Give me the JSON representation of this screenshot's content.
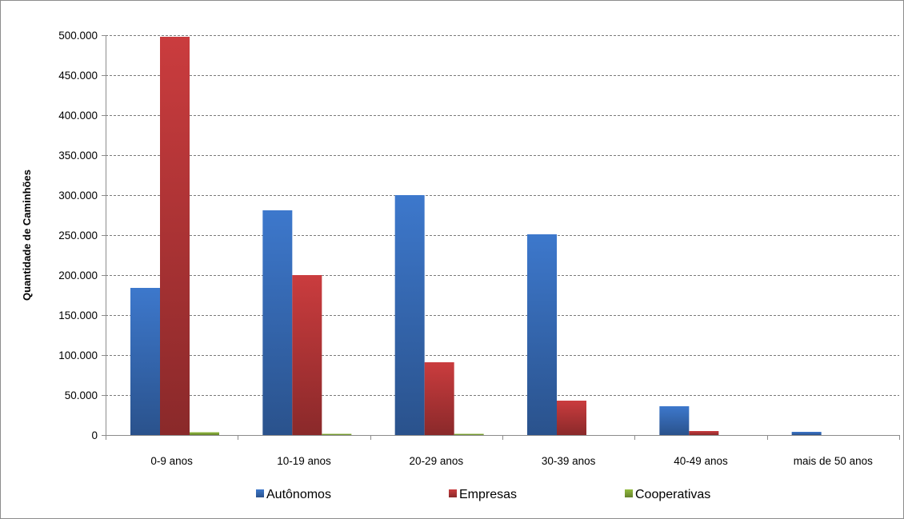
{
  "chart_data": {
    "type": "bar",
    "title": "",
    "xlabel": "",
    "ylabel": "Quantidade de Caminhões",
    "categories": [
      "0-9 anos",
      "10-19 anos",
      "20-29 anos",
      "30-39 anos",
      "40-49 anos",
      "mais de 50 anos"
    ],
    "series": [
      {
        "name": "Autônomos",
        "color": "#3a72c2",
        "values": [
          184000,
          281000,
          300000,
          251000,
          36000,
          4000
        ]
      },
      {
        "name": "Empresas",
        "color": "#c0393b",
        "values": [
          498000,
          200000,
          91000,
          43000,
          5000,
          0
        ]
      },
      {
        "name": "Cooperativas",
        "color": "#8cb43c",
        "values": [
          3500,
          1500,
          1500,
          0,
          0,
          0
        ]
      }
    ],
    "ylim": [
      0,
      500000
    ],
    "yticks": [
      0,
      50000,
      100000,
      150000,
      200000,
      250000,
      300000,
      350000,
      400000,
      450000,
      500000
    ],
    "ytick_labels": [
      "0",
      "50.000",
      "100.000",
      "150.000",
      "200.000",
      "250.000",
      "300.000",
      "350.000",
      "400.000",
      "450.000",
      "500.000"
    ],
    "grid": true,
    "legend_position": "bottom"
  }
}
